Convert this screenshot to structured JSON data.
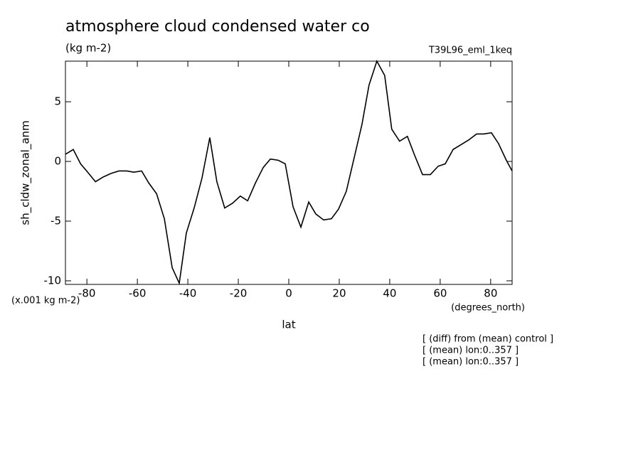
{
  "chart_data": {
    "type": "line",
    "title": "atmosphere cloud condensed water co",
    "subtitle": "(kg m-2)",
    "dataset": "T39L96_eml_1keq",
    "y_label": "sh_cldw_zonal_anm",
    "x_label": "lat",
    "y_units": "(x.001 kg m-2)",
    "x_units": "(degrees_north)",
    "notes": [
      "[ (diff) from (mean) control ]",
      "[ (mean) lon:0..357 ]",
      "[ (mean) lon:0..357 ]"
    ],
    "xlim": [
      -88.5,
      88.5
    ],
    "ylim": [
      -10.3,
      8.4
    ],
    "xticks": [
      -80,
      -60,
      -40,
      -20,
      0,
      20,
      40,
      60,
      80
    ],
    "yticks": [
      -10,
      -5,
      0,
      5
    ],
    "series": [
      {
        "color": "#000000",
        "x": [
          -88.5,
          -85.4,
          -82.5,
          -79.7,
          -76.6,
          -73.5,
          -70.4,
          -67.3,
          -64.2,
          -61.4,
          -58.3,
          -55.5,
          -52.4,
          -49.3,
          -46.2,
          -43.4,
          -40.6,
          -37.5,
          -34.4,
          -31.3,
          -28.5,
          -25.4,
          -22.3,
          -19.2,
          -16.3,
          -13.2,
          -10.1,
          -7.3,
          -4.2,
          -1.4,
          1.7,
          4.8,
          7.9,
          10.7,
          13.8,
          16.9,
          19.7,
          22.8,
          25.9,
          29.0,
          31.8,
          34.9,
          38.0,
          40.8,
          43.9,
          47.0,
          49.9,
          53.0,
          56.1,
          59.2,
          62.0,
          65.1,
          68.2,
          71.3,
          74.4,
          77.2,
          80.3,
          83.1,
          86.2,
          88.5
        ],
        "values": [
          0.6,
          1.0,
          -0.2,
          -0.9,
          -1.7,
          -1.3,
          -1.0,
          -0.8,
          -0.8,
          -0.9,
          -0.8,
          -1.8,
          -2.7,
          -4.8,
          -8.9,
          -10.2,
          -6.0,
          -3.9,
          -1.4,
          2.0,
          -1.7,
          -3.9,
          -3.5,
          -2.9,
          -3.3,
          -1.8,
          -0.5,
          0.2,
          0.1,
          -0.2,
          -3.8,
          -5.5,
          -3.4,
          -4.4,
          -4.9,
          -4.8,
          -4.0,
          -2.5,
          0.3,
          3.1,
          6.4,
          8.4,
          7.2,
          2.7,
          1.7,
          2.1,
          0.5,
          -1.1,
          -1.1,
          -0.4,
          -0.2,
          1.0,
          1.4,
          1.8,
          2.3,
          2.3,
          2.4,
          1.5,
          0.1,
          -0.8
        ]
      }
    ]
  }
}
